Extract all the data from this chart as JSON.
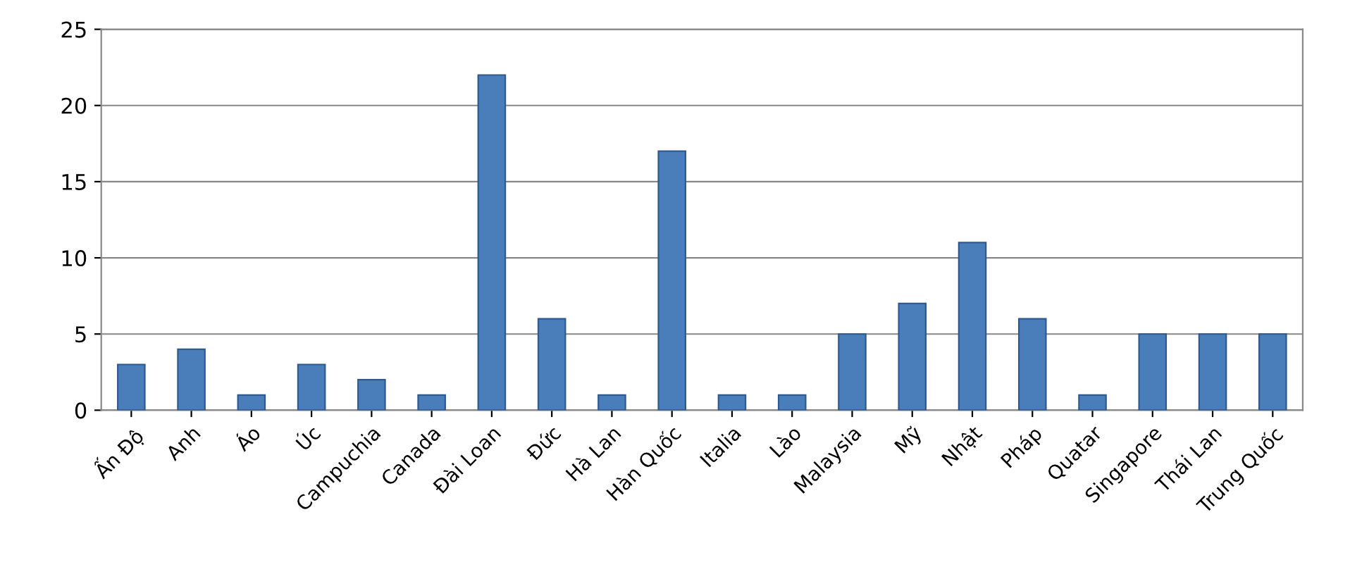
{
  "chart_data": {
    "type": "bar",
    "categories": [
      "Ấn Độ",
      "Anh",
      "Áo",
      "Úc",
      "Campuchia",
      "Canada",
      "Đài Loan",
      "Đức",
      "Hà Lan",
      "Hàn Quốc",
      "Italia",
      "Lào",
      "Malaysia",
      "Mỹ",
      "Nhật",
      "Pháp",
      "Quatar",
      "Singapore",
      "Thái Lan",
      "Trung Quốc"
    ],
    "values": [
      3,
      4,
      1,
      3,
      2,
      1,
      22,
      6,
      1,
      17,
      1,
      1,
      5,
      7,
      11,
      6,
      1,
      5,
      5,
      5
    ],
    "color": "#4a7ebb",
    "ylim": [
      0,
      25
    ],
    "yticks": [
      0,
      5,
      10,
      15,
      20,
      25
    ],
    "grid": "y"
  }
}
